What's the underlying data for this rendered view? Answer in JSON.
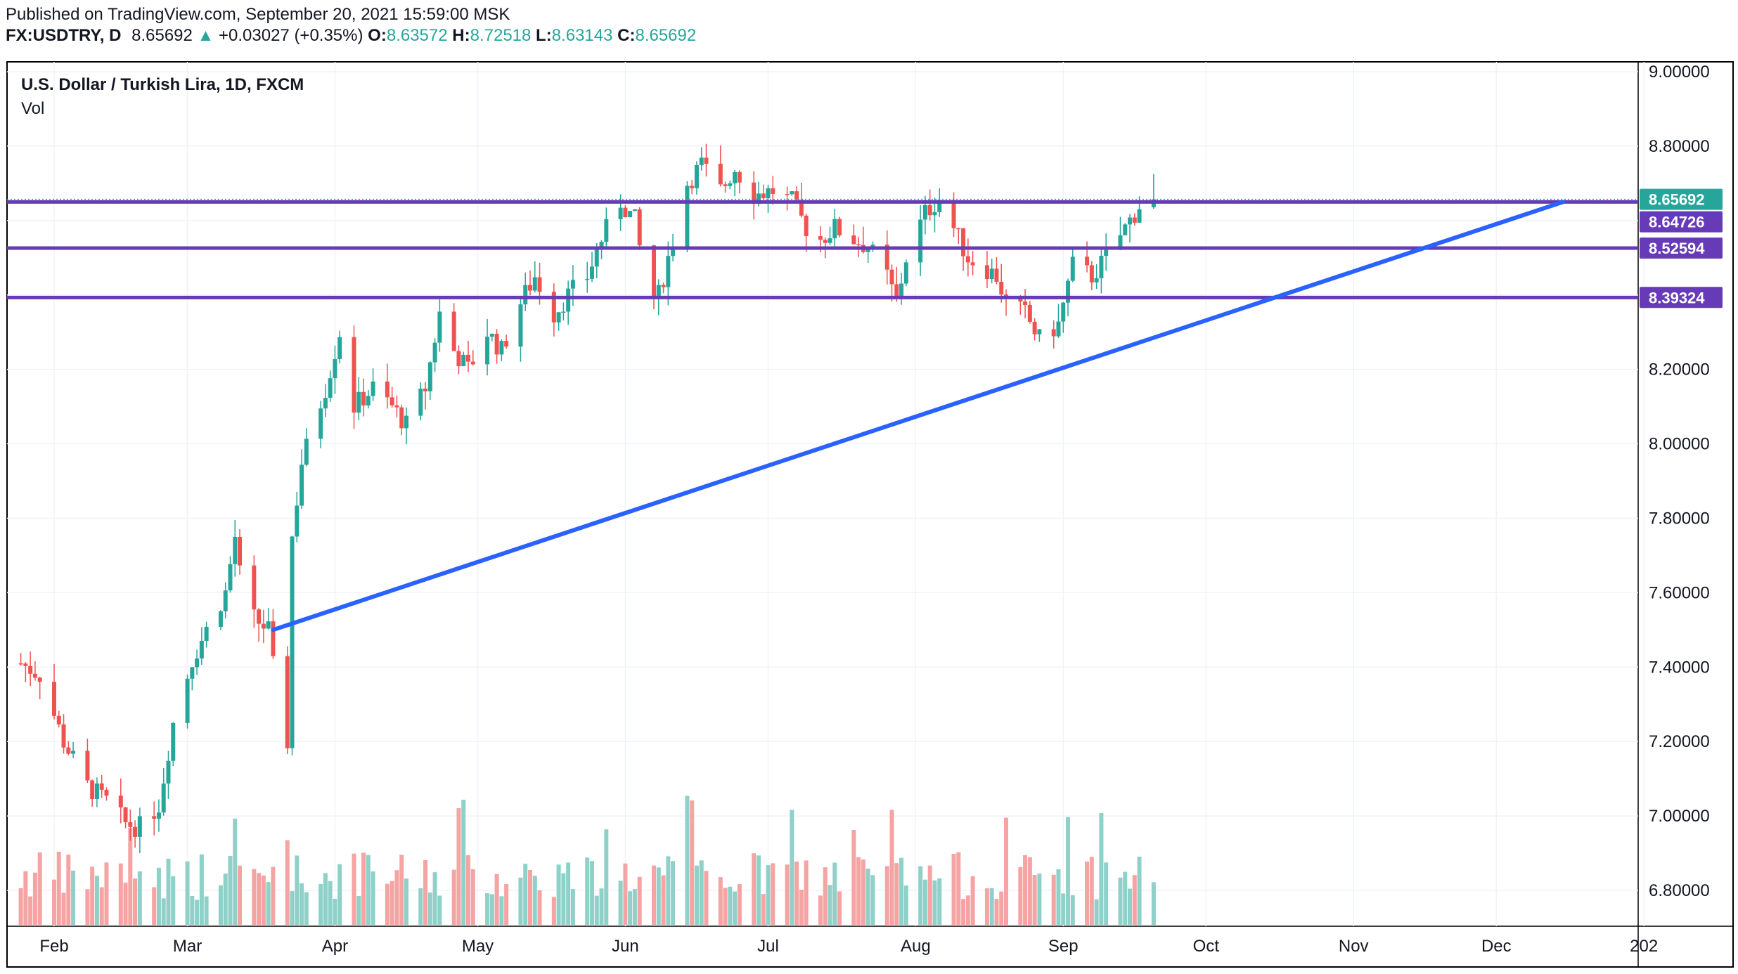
{
  "header": {
    "published": "Published on TradingView.com, September 20, 2021 15:59:00 MSK",
    "symbol": "FX:USDTRY, D",
    "last": "8.65692",
    "change_arrow": "▲",
    "change": "+0.03027 (+0.35%)",
    "o_label": "O:",
    "o_value": "8.63572",
    "h_label": "H:",
    "h_value": "8.72518",
    "l_label": "L:",
    "l_value": "8.63143",
    "c_label": "C:",
    "c_value": "8.65692"
  },
  "legend": {
    "title": "U.S. Dollar / Turkish Lira, 1D, FXCM",
    "vol": "Vol"
  },
  "colors": {
    "up": "#26a69a",
    "down": "#ef5350",
    "vol_up": "#8fd1c9",
    "vol_down": "#f5a3a3",
    "hline": "#673ab7",
    "trendline": "#2962ff",
    "last_tag": "#26a69a"
  },
  "chart_data": {
    "type": "candlestick",
    "y_axis": {
      "ticks": [
        "9.00000",
        "8.80000",
        "8.60000",
        "8.40000",
        "8.20000",
        "8.00000",
        "7.80000",
        "7.60000",
        "7.40000",
        "7.20000",
        "7.00000",
        "6.80000"
      ],
      "range": [
        6.7,
        9.0
      ]
    },
    "x_axis": {
      "ticks": [
        "Feb",
        "Mar",
        "Apr",
        "May",
        "Jun",
        "Jul",
        "Aug",
        "Sep",
        "Oct",
        "Nov",
        "Dec",
        "202"
      ]
    },
    "price_tags": [
      {
        "label": "8.65692",
        "value": 8.65692,
        "kind": "last"
      },
      {
        "label": "8.64726",
        "value": 8.64726,
        "kind": "line"
      },
      {
        "label": "8.52594",
        "value": 8.52594,
        "kind": "line"
      },
      {
        "label": "8.39324",
        "value": 8.39324,
        "kind": "line"
      }
    ],
    "horizontal_lines": [
      8.65,
      8.526,
      8.393
    ],
    "trendline": {
      "from": {
        "date": "2021-03-19",
        "value": 7.5
      },
      "to": {
        "date": "2021-12-15",
        "value": 8.65
      }
    },
    "anchor_points": [
      [
        "2021-01-25",
        7.41
      ],
      [
        "2021-01-29",
        7.38
      ],
      [
        "2021-02-03",
        7.2
      ],
      [
        "2021-02-08",
        7.08
      ],
      [
        "2021-02-12",
        7.04
      ],
      [
        "2021-02-16",
        6.98
      ],
      [
        "2021-02-19",
        6.97
      ],
      [
        "2021-02-23",
        7.03
      ],
      [
        "2021-02-26",
        7.25
      ],
      [
        "2021-03-02",
        7.42
      ],
      [
        "2021-03-05",
        7.5
      ],
      [
        "2021-03-09",
        7.6
      ],
      [
        "2021-03-11",
        7.75
      ],
      [
        "2021-03-13",
        7.55
      ],
      [
        "2021-03-16",
        7.52
      ],
      [
        "2021-03-18",
        7.5
      ],
      [
        "2021-03-19",
        7.4
      ],
      [
        "2021-03-22",
        7.2
      ],
      [
        "2021-03-23",
        7.75
      ],
      [
        "2021-03-25",
        7.95
      ],
      [
        "2021-03-30",
        8.15
      ],
      [
        "2021-04-02",
        8.3
      ],
      [
        "2021-04-05",
        8.1
      ],
      [
        "2021-04-09",
        8.15
      ],
      [
        "2021-04-13",
        8.1
      ],
      [
        "2021-04-16",
        8.05
      ],
      [
        "2021-04-20",
        8.15
      ],
      [
        "2021-04-23",
        8.35
      ],
      [
        "2021-04-26",
        8.25
      ],
      [
        "2021-04-29",
        8.2
      ],
      [
        "2021-05-03",
        8.3
      ],
      [
        "2021-05-06",
        8.25
      ],
      [
        "2021-05-10",
        8.38
      ],
      [
        "2021-05-13",
        8.45
      ],
      [
        "2021-05-17",
        8.35
      ],
      [
        "2021-05-20",
        8.4
      ],
      [
        "2021-05-24",
        8.45
      ],
      [
        "2021-05-27",
        8.55
      ],
      [
        "2021-05-31",
        8.65
      ],
      [
        "2021-06-03",
        8.6
      ],
      [
        "2021-06-06",
        8.38
      ],
      [
        "2021-06-08",
        8.4
      ],
      [
        "2021-06-11",
        8.55
      ],
      [
        "2021-06-14",
        8.7
      ],
      [
        "2021-06-17",
        8.75
      ],
      [
        "2021-06-21",
        8.68
      ],
      [
        "2021-06-24",
        8.74
      ],
      [
        "2021-06-28",
        8.67
      ],
      [
        "2021-07-02",
        8.68
      ],
      [
        "2021-07-06",
        8.65
      ],
      [
        "2021-07-09",
        8.58
      ],
      [
        "2021-07-12",
        8.55
      ],
      [
        "2021-07-15",
        8.58
      ],
      [
        "2021-07-19",
        8.55
      ],
      [
        "2021-07-22",
        8.53
      ],
      [
        "2021-07-26",
        8.45
      ],
      [
        "2021-07-28",
        8.38
      ],
      [
        "2021-07-30",
        8.5
      ],
      [
        "2021-08-03",
        8.62
      ],
      [
        "2021-08-06",
        8.66
      ],
      [
        "2021-08-09",
        8.58
      ],
      [
        "2021-08-12",
        8.5
      ],
      [
        "2021-08-16",
        8.47
      ],
      [
        "2021-08-18",
        8.45
      ],
      [
        "2021-08-20",
        8.38
      ],
      [
        "2021-08-24",
        8.35
      ],
      [
        "2021-08-27",
        8.28
      ],
      [
        "2021-08-31",
        8.32
      ],
      [
        "2021-09-03",
        8.48
      ],
      [
        "2021-09-07",
        8.45
      ],
      [
        "2021-09-10",
        8.5
      ],
      [
        "2021-09-14",
        8.58
      ],
      [
        "2021-09-17",
        8.64
      ],
      [
        "2021-09-20",
        8.6569
      ]
    ]
  }
}
